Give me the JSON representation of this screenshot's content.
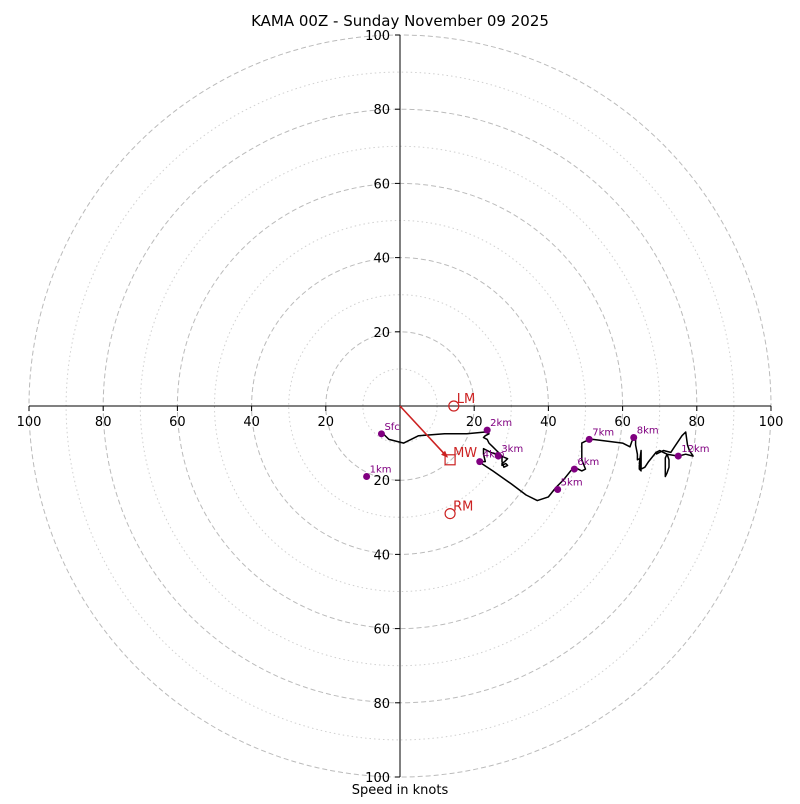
{
  "chart_data": {
    "type": "hodograph",
    "title": "KAMA 00Z - Sunday November 09 2025",
    "xlabel": "Speed in knots",
    "units": "knots",
    "max_speed": 100,
    "major_rings": [
      20,
      40,
      60,
      80,
      100
    ],
    "minor_rings": [
      10,
      30,
      50,
      70,
      90
    ],
    "tick_labels": {
      "right": [
        "20",
        "40",
        "60",
        "80",
        "100"
      ],
      "left": [
        "20",
        "40",
        "60",
        "80",
        "100"
      ],
      "up": [
        "20",
        "40",
        "60",
        "80",
        "100"
      ],
      "down": [
        "20",
        "40",
        "60",
        "80",
        "100"
      ]
    },
    "trace": [
      [
        -5,
        -7
      ],
      [
        -3,
        -9
      ],
      [
        1,
        -10
      ],
      [
        5,
        -8
      ],
      [
        12,
        -7.5
      ],
      [
        18,
        -7.5
      ],
      [
        23,
        -7
      ],
      [
        24,
        -7.5
      ],
      [
        23,
        -8
      ],
      [
        22.5,
        -8.5
      ],
      [
        23.5,
        -9
      ],
      [
        24,
        -10
      ],
      [
        25,
        -11
      ],
      [
        26,
        -12
      ],
      [
        27,
        -13
      ],
      [
        27.5,
        -13.5
      ],
      [
        28,
        -13.8
      ],
      [
        29,
        -14.2
      ],
      [
        28.2,
        -15
      ],
      [
        27.5,
        -15.5
      ],
      [
        27.5,
        -16
      ],
      [
        28.5,
        -15.5
      ],
      [
        29,
        -16
      ],
      [
        28,
        -16.5
      ],
      [
        27.5,
        -15
      ],
      [
        27.5,
        -13.5
      ],
      [
        26.5,
        -13.2
      ],
      [
        24.5,
        -12.5
      ],
      [
        23.5,
        -12
      ],
      [
        22.5,
        -11.5
      ],
      [
        22.5,
        -12
      ],
      [
        22.5,
        -13
      ],
      [
        23,
        -15
      ],
      [
        22,
        -15
      ],
      [
        21.5,
        -15.5
      ],
      [
        22,
        -15.5
      ],
      [
        25,
        -17.5
      ],
      [
        30,
        -21
      ],
      [
        34,
        -24
      ],
      [
        37,
        -25.5
      ],
      [
        40,
        -24.5
      ],
      [
        42,
        -22
      ],
      [
        44,
        -20
      ],
      [
        46,
        -17.5
      ],
      [
        47,
        -16.5
      ],
      [
        49,
        -17.5
      ],
      [
        50,
        -17
      ],
      [
        49,
        -14.5
      ],
      [
        49,
        -10
      ],
      [
        50,
        -9.5
      ],
      [
        52,
        -9
      ],
      [
        60,
        -10
      ],
      [
        62,
        -11
      ],
      [
        62.5,
        -9.5
      ],
      [
        63.5,
        -8
      ],
      [
        63.5,
        -10.5
      ],
      [
        64,
        -13
      ],
      [
        64,
        -14.5
      ],
      [
        65,
        -14
      ],
      [
        64.5,
        -16
      ],
      [
        64.5,
        -17
      ],
      [
        65,
        -17.5
      ],
      [
        64.5,
        -15.5
      ],
      [
        65,
        -12
      ],
      [
        65,
        -15
      ],
      [
        65,
        -17
      ],
      [
        66,
        -16.5
      ],
      [
        67,
        -15
      ],
      [
        69,
        -12.5
      ],
      [
        70,
        -12
      ],
      [
        71,
        -12.5
      ],
      [
        72,
        -13
      ],
      [
        71.5,
        -14
      ],
      [
        71.5,
        -15
      ],
      [
        71.5,
        -16
      ],
      [
        71.5,
        -19
      ],
      [
        72,
        -18
      ],
      [
        72.5,
        -16.5
      ],
      [
        72.5,
        -14.5
      ],
      [
        72,
        -13
      ],
      [
        75,
        -13.5
      ],
      [
        77,
        -13
      ],
      [
        79,
        -13.5
      ],
      [
        78,
        -12
      ],
      [
        77.5,
        -10.5
      ],
      [
        77,
        -7
      ],
      [
        76,
        -8
      ],
      [
        75,
        -9.5
      ],
      [
        74,
        -11
      ],
      [
        73,
        -12.5
      ],
      [
        71,
        -12
      ],
      [
        69,
        -13
      ]
    ],
    "height_markers": [
      {
        "label": "Sfc",
        "u": -5,
        "v": -7.5
      },
      {
        "label": "1km",
        "u": -9,
        "v": -19
      },
      {
        "label": "2km",
        "u": 23.5,
        "v": -6.5
      },
      {
        "label": "3km",
        "u": 26.5,
        "v": -13.5
      },
      {
        "label": "4km",
        "u": 21.5,
        "v": -15
      },
      {
        "label": "5km",
        "u": 42.5,
        "v": -22.5
      },
      {
        "label": "6km",
        "u": 47,
        "v": -17
      },
      {
        "label": "7km",
        "u": 51,
        "v": -9
      },
      {
        "label": "8km",
        "u": 63,
        "v": -8.5
      },
      {
        "label": "12km",
        "u": 75,
        "v": -13.5
      }
    ],
    "storm_motion": {
      "lm": {
        "label": "LM",
        "u": 14.5,
        "v": 0
      },
      "mw": {
        "label": "MW",
        "u": 13.5,
        "v": -14.5
      },
      "rm": {
        "label": "RM",
        "u": 13.5,
        "v": -29
      }
    },
    "colors": {
      "trace": "#000000",
      "marker": "#800080",
      "storm": "#cc2222",
      "ring": "#bbbbbb",
      "axis": "#000000"
    }
  }
}
